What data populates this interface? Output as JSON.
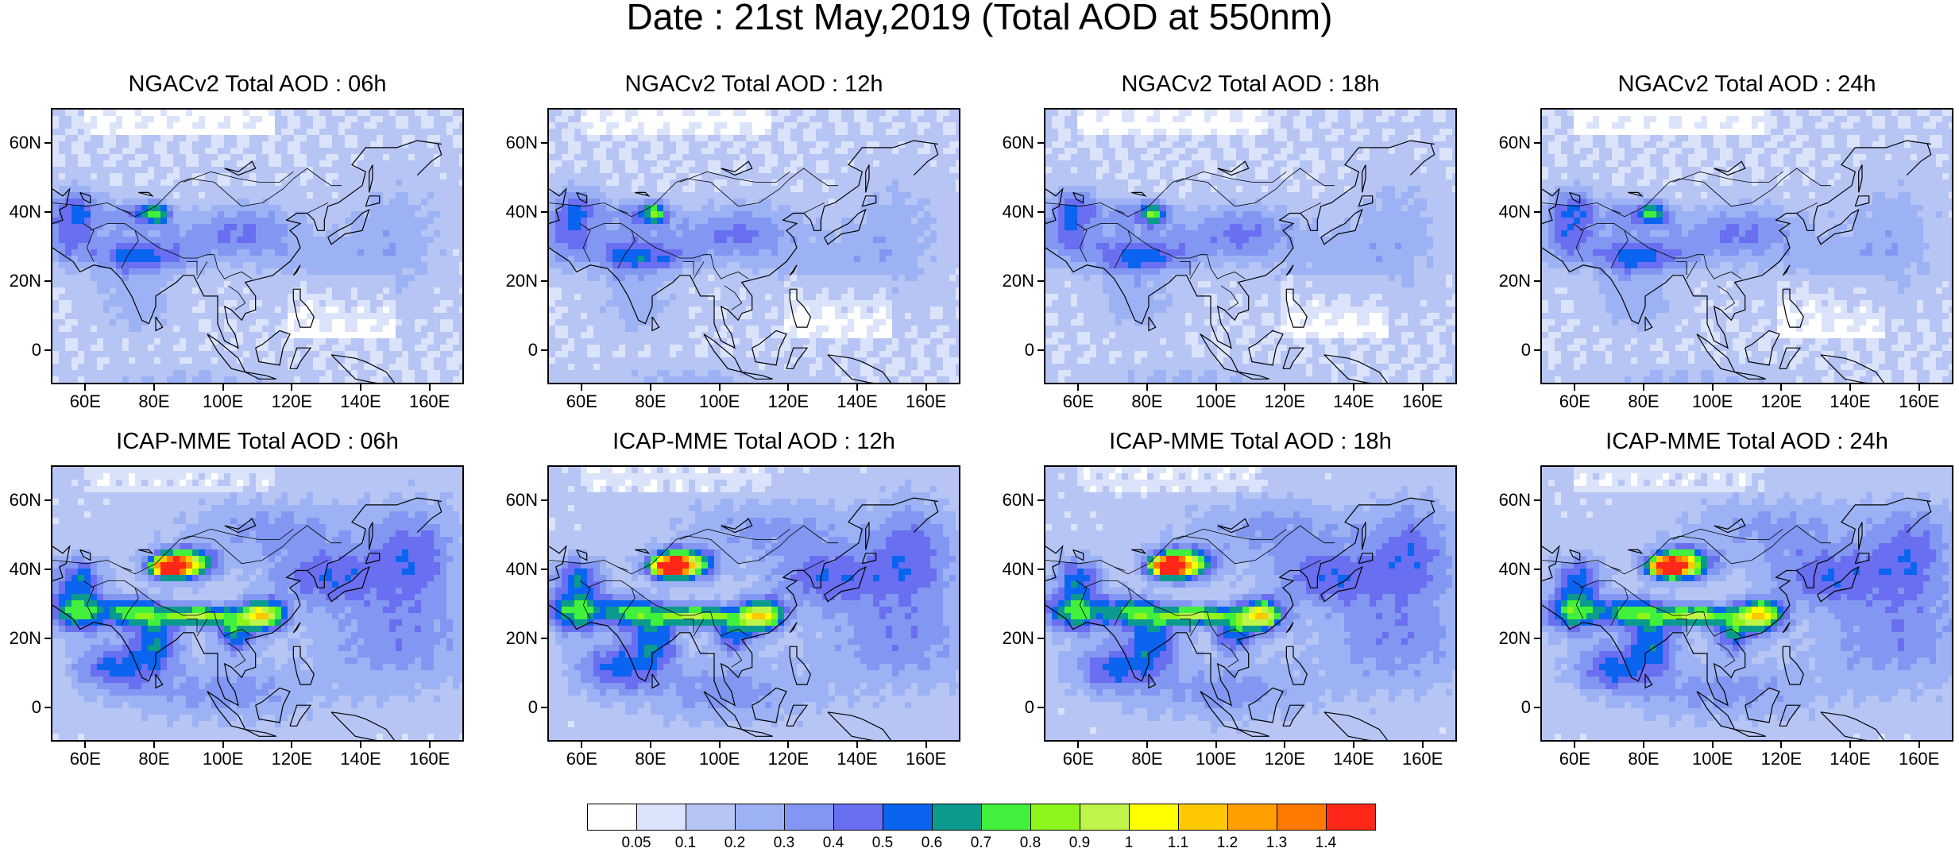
{
  "title": "Date : 21st May,2019 (Total AOD at 550nm)",
  "panels": [
    {
      "title": "NGACv2 Total AOD : 06h",
      "model": "ngac",
      "hour": "06h"
    },
    {
      "title": "NGACv2 Total AOD : 12h",
      "model": "ngac",
      "hour": "12h"
    },
    {
      "title": "NGACv2 Total AOD : 18h",
      "model": "ngac",
      "hour": "18h"
    },
    {
      "title": "NGACv2 Total AOD : 24h",
      "model": "ngac",
      "hour": "24h"
    },
    {
      "title": "ICAP-MME Total AOD : 06h",
      "model": "icap",
      "hour": "06h"
    },
    {
      "title": "ICAP-MME Total AOD : 12h",
      "model": "icap",
      "hour": "12h"
    },
    {
      "title": "ICAP-MME Total AOD : 18h",
      "model": "icap",
      "hour": "18h"
    },
    {
      "title": "ICAP-MME Total AOD : 24h",
      "model": "icap",
      "hour": "24h"
    }
  ],
  "map": {
    "lon_range": [
      50,
      170
    ],
    "lat_range": [
      -10,
      70
    ],
    "lat_ticks": [
      {
        "value": 0,
        "label": "0"
      },
      {
        "value": 20,
        "label": "20N"
      },
      {
        "value": 40,
        "label": "40N"
      },
      {
        "value": 60,
        "label": "60N"
      }
    ],
    "lon_ticks": [
      {
        "value": 60,
        "label": "60E"
      },
      {
        "value": 80,
        "label": "80E"
      },
      {
        "value": 100,
        "label": "100E"
      },
      {
        "value": 120,
        "label": "120E"
      },
      {
        "value": 140,
        "label": "140E"
      },
      {
        "value": 160,
        "label": "160E"
      }
    ]
  },
  "colorbar": {
    "colors": [
      "#ffffff",
      "#dbe3fb",
      "#b7c5f4",
      "#9db2f4",
      "#8297f1",
      "#6a6ef0",
      "#0a64f0",
      "#0b9a8e",
      "#41f03c",
      "#8ef51a",
      "#bff54a",
      "#ffff00",
      "#ffc800",
      "#ffa000",
      "#ff7800",
      "#ff2818"
    ],
    "labels": [
      "0.05",
      "0.1",
      "0.2",
      "0.3",
      "0.4",
      "0.5",
      "0.6",
      "0.7",
      "0.8",
      "0.9",
      "1",
      "1.1",
      "1.2",
      "1.3",
      "1.4"
    ]
  }
}
